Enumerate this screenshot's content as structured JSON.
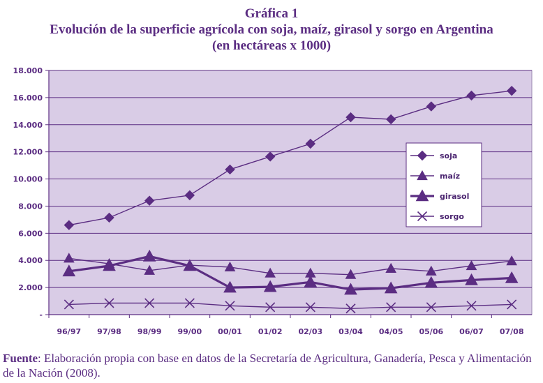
{
  "chart_data": {
    "type": "line",
    "title": "Gráfica 1",
    "subtitle": "Evolución de la superficie agrícola con soja, maíz, girasol y sorgo en Argentina",
    "subtitle2": "(en hectáreas x 1000)",
    "categories": [
      "96/97",
      "97/98",
      "98/99",
      "99/00",
      "00/01",
      "01/02",
      "02/03",
      "03/04",
      "04/05",
      "05/06",
      "06/07",
      "07/08"
    ],
    "y_ticks": [
      "-",
      "2.000",
      "4.000",
      "6.000",
      "8.000",
      "10.000",
      "12.000",
      "14.000",
      "16.000",
      "18.000"
    ],
    "ylim": [
      0,
      18000
    ],
    "grid": true,
    "legend_placement": "right",
    "series": [
      {
        "name": "soja",
        "marker": "diamond",
        "color": "#5b2d82",
        "values": [
          6600,
          7150,
          8400,
          8800,
          10700,
          11650,
          12600,
          14550,
          14400,
          15350,
          16150,
          16500
        ]
      },
      {
        "name": "maíz",
        "marker": "triangle",
        "color": "#5b2d82",
        "values": [
          4150,
          3750,
          3250,
          3650,
          3500,
          3050,
          3050,
          2950,
          3400,
          3200,
          3600,
          3950
        ]
      },
      {
        "name": "girasol",
        "marker": "triangle-bold",
        "color": "#5b2d82",
        "values": [
          3200,
          3600,
          4300,
          3600,
          2000,
          2050,
          2400,
          1850,
          1950,
          2350,
          2550,
          2700
        ]
      },
      {
        "name": "sorgo",
        "marker": "x",
        "color": "#5b2d82",
        "values": [
          750,
          850,
          850,
          850,
          650,
          550,
          550,
          450,
          550,
          550,
          650,
          750
        ]
      }
    ],
    "plot_bg": "#d9cce6",
    "line_color": "#5b2d82"
  },
  "source": {
    "label": "Fuente",
    "text": ": Elaboración propia con base en datos de la Secretaría de Agricultura, Ganadería, Pesca y Alimentación de la Nación (2008)."
  }
}
